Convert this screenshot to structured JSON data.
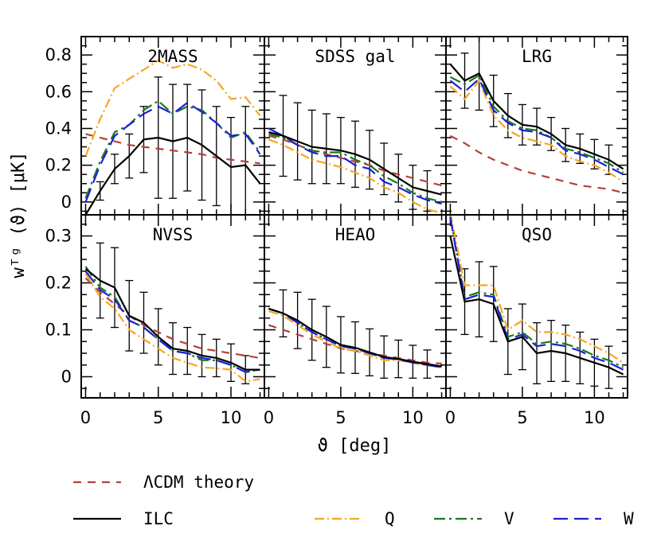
{
  "figure": {
    "xlabel": "ϑ [deg]",
    "ylabel": "wᵀᵍ (ϑ)  [μK]"
  },
  "colors": {
    "theory": "#b5413e",
    "ILC": "#000000",
    "Q": "#f5a623",
    "V": "#1b7a1b",
    "W": "#1f1fd6"
  },
  "legend": [
    {
      "key": "theory",
      "label": "ΛCDM theory",
      "dash": "10,8"
    },
    {
      "key": "ILC",
      "label": "ILC",
      "dash": ""
    },
    {
      "key": "Q",
      "label": "Q",
      "dash": "12,4,2,4"
    },
    {
      "key": "V",
      "label": "V",
      "dash": "14,5,3,5"
    },
    {
      "key": "W",
      "label": "W",
      "dash": "18,8"
    }
  ],
  "chart_data": [
    {
      "type": "line",
      "title": "2MASS",
      "xlim": [
        -0.3,
        12.3
      ],
      "ylim": [
        -0.07,
        0.9
      ],
      "yticks": [
        0,
        0.2,
        0.4,
        0.6,
        0.8
      ],
      "yticklabels": [
        "0",
        "0.2",
        "0.4",
        "0.6",
        "0.8"
      ],
      "xticks": [
        0,
        5,
        10
      ],
      "x": [
        0,
        1,
        2,
        3,
        4,
        5,
        6,
        7,
        8,
        9,
        10,
        11,
        12
      ],
      "series": [
        {
          "key": "theory",
          "values": [
            0.37,
            0.35,
            0.33,
            0.31,
            0.3,
            0.29,
            0.28,
            0.27,
            0.26,
            0.24,
            0.23,
            0.22,
            0.21
          ]
        },
        {
          "key": "Q",
          "values": [
            0.25,
            0.45,
            0.62,
            0.67,
            0.72,
            0.77,
            0.73,
            0.75,
            0.72,
            0.66,
            0.56,
            0.57,
            0.47
          ]
        },
        {
          "key": "V",
          "values": [
            0.02,
            0.22,
            0.38,
            0.42,
            0.5,
            0.55,
            0.48,
            0.52,
            0.5,
            0.43,
            0.35,
            0.38,
            0.27
          ]
        },
        {
          "key": "W",
          "values": [
            0.0,
            0.2,
            0.36,
            0.42,
            0.48,
            0.52,
            0.48,
            0.54,
            0.49,
            0.43,
            0.36,
            0.37,
            0.26
          ]
        },
        {
          "key": "ILC",
          "values": [
            -0.07,
            0.06,
            0.18,
            0.25,
            0.34,
            0.35,
            0.33,
            0.35,
            0.31,
            0.25,
            0.19,
            0.2,
            0.1
          ]
        }
      ],
      "errors": [
        0.0,
        0.05,
        0.08,
        0.12,
        0.18,
        0.33,
        0.31,
        0.29,
        0.3,
        0.27,
        0.27,
        0.32,
        0.0
      ]
    },
    {
      "type": "line",
      "title": "SDSS gal",
      "xlim": [
        -0.3,
        12.3
      ],
      "ylim": [
        -0.07,
        0.9
      ],
      "xticks": [
        0,
        5,
        10
      ],
      "x": [
        0,
        1,
        2,
        3,
        4,
        5,
        6,
        7,
        8,
        9,
        10,
        11,
        12
      ],
      "series": [
        {
          "key": "theory",
          "values": [
            0.36,
            0.34,
            0.31,
            0.28,
            0.26,
            0.24,
            0.22,
            0.2,
            0.17,
            0.15,
            0.13,
            0.11,
            0.09
          ]
        },
        {
          "key": "Q",
          "values": [
            0.34,
            0.31,
            0.27,
            0.23,
            0.21,
            0.19,
            0.16,
            0.13,
            0.08,
            0.05,
            0.0,
            -0.04,
            -0.06
          ]
        },
        {
          "key": "V",
          "values": [
            0.37,
            0.35,
            0.31,
            0.28,
            0.27,
            0.27,
            0.23,
            0.2,
            0.14,
            0.1,
            0.05,
            0.02,
            0.0
          ]
        },
        {
          "key": "W",
          "values": [
            0.4,
            0.36,
            0.31,
            0.27,
            0.25,
            0.25,
            0.2,
            0.18,
            0.11,
            0.08,
            0.04,
            0.01,
            -0.01
          ]
        },
        {
          "key": "ILC",
          "values": [
            0.38,
            0.36,
            0.33,
            0.3,
            0.29,
            0.28,
            0.26,
            0.23,
            0.18,
            0.13,
            0.08,
            0.06,
            0.04
          ]
        }
      ],
      "errors": [
        0.0,
        0.22,
        0.21,
        0.2,
        0.19,
        0.18,
        0.18,
        0.16,
        0.14,
        0.13,
        0.12,
        0.11,
        0.0
      ]
    },
    {
      "type": "line",
      "title": "LRG",
      "xlim": [
        -0.3,
        12.3
      ],
      "ylim": [
        -0.07,
        0.9
      ],
      "xticks": [
        0,
        5,
        10
      ],
      "x": [
        0,
        1,
        2,
        3,
        4,
        5,
        6,
        7,
        8,
        9,
        10,
        11,
        12
      ],
      "series": [
        {
          "key": "theory",
          "values": [
            0.36,
            0.32,
            0.27,
            0.23,
            0.2,
            0.17,
            0.15,
            0.13,
            0.11,
            0.09,
            0.08,
            0.07,
            0.05
          ]
        },
        {
          "key": "Q",
          "values": [
            0.63,
            0.56,
            0.66,
            0.47,
            0.39,
            0.35,
            0.33,
            0.31,
            0.25,
            0.22,
            0.2,
            0.16,
            0.11
          ]
        },
        {
          "key": "V",
          "values": [
            0.68,
            0.64,
            0.69,
            0.52,
            0.44,
            0.4,
            0.39,
            0.35,
            0.29,
            0.27,
            0.24,
            0.21,
            0.16
          ]
        },
        {
          "key": "W",
          "values": [
            0.66,
            0.6,
            0.67,
            0.5,
            0.43,
            0.39,
            0.38,
            0.35,
            0.28,
            0.26,
            0.23,
            0.19,
            0.15
          ]
        },
        {
          "key": "ILC",
          "values": [
            0.75,
            0.66,
            0.7,
            0.55,
            0.47,
            0.42,
            0.41,
            0.37,
            0.31,
            0.29,
            0.26,
            0.23,
            0.18
          ]
        }
      ],
      "errors": [
        0.0,
        0.15,
        0.2,
        0.14,
        0.12,
        0.11,
        0.1,
        0.09,
        0.09,
        0.08,
        0.08,
        0.08,
        0.0
      ]
    },
    {
      "type": "line",
      "title": "NVSS",
      "xlim": [
        -0.3,
        12.3
      ],
      "ylim": [
        -0.045,
        0.345
      ],
      "yticks": [
        0,
        0.1,
        0.2,
        0.3
      ],
      "yticklabels": [
        "0",
        "0.1",
        "0.2",
        "0.3"
      ],
      "xticks": [
        0,
        5,
        10
      ],
      "x": [
        0,
        1,
        2,
        3,
        4,
        5,
        6,
        7,
        8,
        9,
        10,
        11,
        12
      ],
      "series": [
        {
          "key": "theory",
          "values": [
            0.21,
            0.18,
            0.155,
            0.13,
            0.11,
            0.095,
            0.08,
            0.07,
            0.06,
            0.055,
            0.05,
            0.045,
            0.04
          ]
        },
        {
          "key": "Q",
          "values": [
            0.22,
            0.17,
            0.145,
            0.1,
            0.08,
            0.06,
            0.04,
            0.03,
            0.02,
            0.018,
            0.015,
            -0.01,
            -0.005
          ]
        },
        {
          "key": "V",
          "values": [
            0.235,
            0.19,
            0.17,
            0.12,
            0.105,
            0.08,
            0.055,
            0.05,
            0.035,
            0.035,
            0.025,
            0.01,
            0.015
          ]
        },
        {
          "key": "W",
          "values": [
            0.225,
            0.185,
            0.165,
            0.12,
            0.105,
            0.08,
            0.055,
            0.05,
            0.04,
            0.035,
            0.025,
            0.01,
            0.015
          ]
        },
        {
          "key": "ILC",
          "values": [
            0.23,
            0.205,
            0.19,
            0.13,
            0.115,
            0.085,
            0.06,
            0.055,
            0.045,
            0.04,
            0.03,
            0.015,
            0.015
          ]
        }
      ],
      "errors": [
        0.0,
        0.08,
        0.085,
        0.075,
        0.065,
        0.06,
        0.055,
        0.05,
        0.045,
        0.04,
        0.04,
        0.03,
        0.0
      ]
    },
    {
      "type": "line",
      "title": "HEAO",
      "xlim": [
        -0.3,
        12.3
      ],
      "ylim": [
        -0.045,
        0.345
      ],
      "xticks": [
        0,
        5,
        10
      ],
      "x": [
        0,
        1,
        2,
        3,
        4,
        5,
        6,
        7,
        8,
        9,
        10,
        11,
        12
      ],
      "series": [
        {
          "key": "theory",
          "values": [
            0.11,
            0.1,
            0.09,
            0.08,
            0.07,
            0.06,
            0.055,
            0.05,
            0.045,
            0.04,
            0.035,
            0.03,
            0.028
          ]
        },
        {
          "key": "Q",
          "values": [
            0.14,
            0.13,
            0.11,
            0.09,
            0.075,
            0.06,
            0.055,
            0.045,
            0.035,
            0.035,
            0.03,
            0.025,
            0.02
          ]
        },
        {
          "key": "V",
          "values": [
            0.145,
            0.135,
            0.115,
            0.095,
            0.08,
            0.065,
            0.06,
            0.05,
            0.04,
            0.037,
            0.03,
            0.025,
            0.02
          ]
        },
        {
          "key": "W",
          "values": [
            0.145,
            0.135,
            0.115,
            0.095,
            0.08,
            0.065,
            0.06,
            0.05,
            0.04,
            0.037,
            0.03,
            0.025,
            0.02
          ]
        },
        {
          "key": "ILC",
          "values": [
            0.145,
            0.135,
            0.12,
            0.1,
            0.085,
            0.068,
            0.062,
            0.052,
            0.042,
            0.038,
            0.032,
            0.027,
            0.022
          ]
        }
      ],
      "errors": [
        0.0,
        0.05,
        0.06,
        0.065,
        0.065,
        0.06,
        0.055,
        0.05,
        0.045,
        0.04,
        0.035,
        0.03,
        0.0
      ]
    },
    {
      "type": "line",
      "title": "QSO",
      "xlim": [
        -0.3,
        12.3
      ],
      "ylim": [
        -0.045,
        0.345
      ],
      "xticks": [
        0,
        5,
        10
      ],
      "x": [
        0,
        1,
        2,
        3,
        4,
        5,
        6,
        7,
        8,
        9,
        10,
        11,
        12
      ],
      "series": [
        {
          "key": "Q",
          "values": [
            0.35,
            0.195,
            0.195,
            0.195,
            0.1,
            0.12,
            0.095,
            0.095,
            0.09,
            0.08,
            0.065,
            0.05,
            0.03
          ]
        },
        {
          "key": "V",
          "values": [
            0.34,
            0.17,
            0.18,
            0.175,
            0.085,
            0.095,
            0.07,
            0.075,
            0.07,
            0.06,
            0.045,
            0.035,
            0.02
          ]
        },
        {
          "key": "W",
          "values": [
            0.34,
            0.165,
            0.175,
            0.17,
            0.08,
            0.09,
            0.065,
            0.07,
            0.065,
            0.055,
            0.04,
            0.03,
            0.015
          ]
        },
        {
          "key": "ILC",
          "values": [
            0.3,
            0.16,
            0.165,
            0.155,
            0.075,
            0.085,
            0.05,
            0.055,
            0.05,
            0.04,
            0.03,
            0.02,
            0.005
          ]
        }
      ],
      "errors": [
        0.0,
        0.07,
        0.08,
        0.08,
        0.07,
        0.07,
        0.065,
        0.065,
        0.06,
        0.055,
        0.05,
        0.045,
        0.0
      ]
    }
  ]
}
